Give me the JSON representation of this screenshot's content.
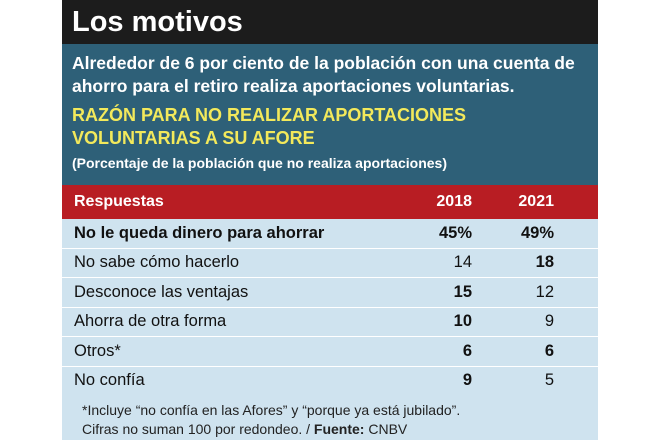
{
  "title": "Los motivos",
  "lead": "Alrededor de 6 por ciento de la población con una cuenta de ahorro para el retiro realiza aportaciones voluntarias.",
  "subtitle": "RAZÓN PARA NO REALIZAR APORTACIONES VOLUNTARIAS A SU AFORE",
  "note": "(Porcentaje de la población que no realiza aportaciones)",
  "table": {
    "headers": {
      "label": "Respuestas",
      "y1": "2018",
      "y2": "2021"
    },
    "rows": [
      {
        "label": "No le queda dinero para ahorrar",
        "y1": "45%",
        "y2": "49%",
        "bold_label": true,
        "bold_y1": true,
        "bold_y2": true
      },
      {
        "label": "No sabe cómo hacerlo",
        "y1": "14",
        "y2": "18",
        "bold_label": false,
        "bold_y1": false,
        "bold_y2": true
      },
      {
        "label": "Desconoce las ventajas",
        "y1": "15",
        "y2": "12",
        "bold_label": false,
        "bold_y1": true,
        "bold_y2": false
      },
      {
        "label": "Ahorra de otra forma",
        "y1": "10",
        "y2": "9",
        "bold_label": false,
        "bold_y1": true,
        "bold_y2": false
      },
      {
        "label": "Otros*",
        "y1": "6",
        "y2": "6",
        "bold_label": false,
        "bold_y1": true,
        "bold_y2": true
      },
      {
        "label": "No confía",
        "y1": "9",
        "y2": "5",
        "bold_label": false,
        "bold_y1": true,
        "bold_y2": false
      }
    ]
  },
  "footnote": {
    "line1": "*Incluye “no confía en las Afores” y “porque ya está jubilado”.",
    "line2_text": "Cifras no suman 100 por redondeo. / ",
    "source_label": "Fuente:",
    "source_value": " CNBV"
  },
  "colors": {
    "title_bg": "#1c1c1c",
    "intro_bg": "#2e6078",
    "subtitle": "#f3e95b",
    "header_bg": "#b81d23",
    "table_bg": "#cfe3ef"
  }
}
